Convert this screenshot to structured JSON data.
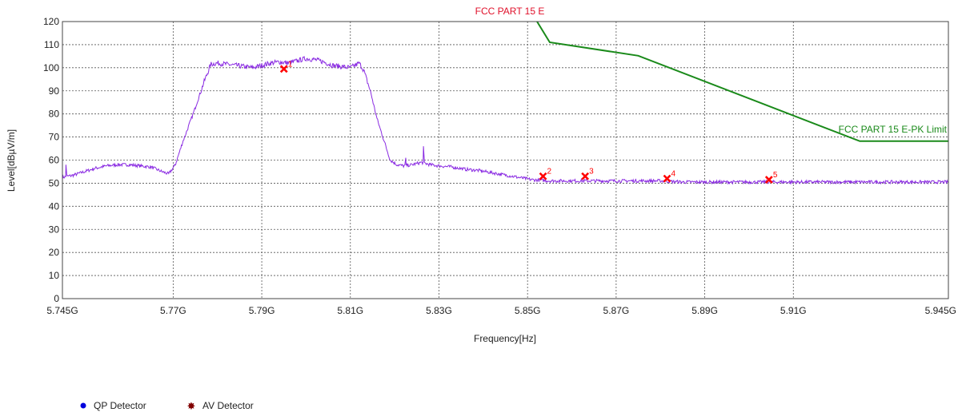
{
  "chart_data": {
    "type": "line",
    "title": "FCC PART 15 E",
    "xlabel": "Frequency[Hz]",
    "ylabel": "Level[dBµV/m]",
    "xlim": [
      5.745,
      5.945
    ],
    "ylim": [
      0,
      120
    ],
    "x_unit": "GHz",
    "grid": true,
    "x_ticks": [
      5.745,
      5.77,
      5.79,
      5.81,
      5.83,
      5.85,
      5.87,
      5.89,
      5.91,
      5.945
    ],
    "x_tick_labels": [
      "5.745G",
      "5.77G",
      "5.79G",
      "5.81G",
      "5.83G",
      "5.85G",
      "5.87G",
      "5.89G",
      "5.91G",
      "5.945G"
    ],
    "y_ticks": [
      0,
      10,
      20,
      30,
      40,
      50,
      60,
      70,
      80,
      90,
      100,
      110,
      120
    ],
    "y_tick_labels": [
      "0",
      "10",
      "20",
      "30",
      "40",
      "50",
      "60",
      "70",
      "80",
      "90",
      "100",
      "110",
      "120"
    ],
    "series": [
      {
        "name": "",
        "color": "#8a2be2",
        "x": [
          5.745,
          5.7475,
          5.75,
          5.7525,
          5.755,
          5.7575,
          5.76,
          5.7625,
          5.765,
          5.7675,
          5.769,
          5.7705,
          5.772,
          5.7745,
          5.777,
          5.7785,
          5.78,
          5.782,
          5.784,
          5.786,
          5.788,
          5.79,
          5.792,
          5.794,
          5.796,
          5.798,
          5.8,
          5.802,
          5.804,
          5.806,
          5.808,
          5.81,
          5.811,
          5.812,
          5.813,
          5.8145,
          5.816,
          5.818,
          5.819,
          5.8205,
          5.822,
          5.824,
          5.826,
          5.828,
          5.83,
          5.833,
          5.836,
          5.839,
          5.842,
          5.845,
          5.848,
          5.851,
          5.855,
          5.86,
          5.865,
          5.87,
          5.875,
          5.88,
          5.885,
          5.89,
          5.895,
          5.9,
          5.905,
          5.91,
          5.915,
          5.92,
          5.925,
          5.93,
          5.935,
          5.94,
          5.945
        ],
        "y": [
          52.5,
          53.5,
          55.0,
          56.5,
          57.5,
          58.0,
          58.0,
          57.5,
          57.0,
          55.0,
          54.0,
          58.0,
          67.0,
          80.0,
          94.0,
          101.5,
          102.0,
          101.5,
          101.0,
          100.5,
          100.0,
          101.0,
          102.0,
          102.5,
          102.0,
          103.0,
          104.0,
          103.5,
          102.5,
          101.0,
          100.5,
          100.0,
          101.0,
          102.0,
          99.0,
          90.0,
          78.0,
          66.0,
          60.0,
          58.0,
          57.5,
          58.0,
          59.0,
          58.0,
          57.5,
          57.0,
          56.0,
          55.5,
          54.5,
          53.5,
          52.5,
          51.5,
          51.0,
          51.0,
          51.0,
          51.0,
          51.0,
          51.0,
          50.5,
          50.5,
          50.5,
          50.5,
          50.5,
          50.5,
          50.5,
          50.5,
          50.5,
          50.5,
          50.5,
          50.5,
          50.5
        ]
      },
      {
        "name": "FCC PART 15 E-PK Limit",
        "color": "#1a8a1a",
        "x": [
          5.8515,
          5.855,
          5.875,
          5.925,
          5.945
        ],
        "y": [
          122,
          111,
          105.2,
          68.2,
          68.2
        ]
      }
    ],
    "spikes": [
      {
        "x": 5.7458,
        "y": 58.0
      },
      {
        "x": 5.8225,
        "y": 61.0
      },
      {
        "x": 5.8265,
        "y": 66.0
      }
    ],
    "markers": [
      {
        "label": "1",
        "x": 5.795,
        "y": 99.5
      },
      {
        "label": "2",
        "x": 5.8535,
        "y": 53.0
      },
      {
        "label": "3",
        "x": 5.863,
        "y": 53.0
      },
      {
        "label": "4",
        "x": 5.8815,
        "y": 52.0
      },
      {
        "label": "5",
        "x": 5.9045,
        "y": 51.5
      }
    ],
    "marker_color": "#ff0000",
    "limit_line_label": "FCC PART 15 E-PK Limit",
    "legend": {
      "placement": "bottom-left",
      "items": [
        {
          "label": "QP Detector",
          "color": "#0000dd",
          "symbol": "dot"
        },
        {
          "label": "AV Detector",
          "color": "#800000",
          "symbol": "star"
        }
      ]
    }
  }
}
